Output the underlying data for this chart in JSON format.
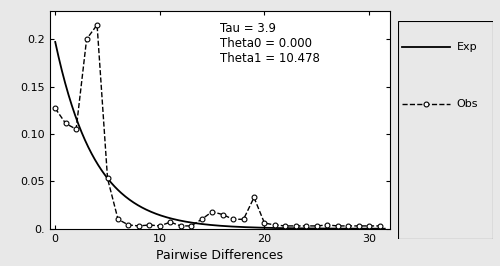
{
  "tau": 3.9,
  "theta0": 0.0,
  "theta1": 10.478,
  "obs_x": [
    0,
    1,
    2,
    3,
    4,
    5,
    6,
    7,
    8,
    9,
    10,
    11,
    12,
    13,
    14,
    15,
    16,
    17,
    18,
    19,
    20,
    21,
    22,
    23,
    24,
    25,
    26,
    27,
    28,
    29,
    30,
    31
  ],
  "obs_y": [
    0.127,
    0.111,
    0.105,
    0.2,
    0.215,
    0.053,
    0.01,
    0.004,
    0.003,
    0.004,
    0.003,
    0.007,
    0.003,
    0.003,
    0.01,
    0.018,
    0.015,
    0.01,
    0.01,
    0.033,
    0.006,
    0.004,
    0.003,
    0.003,
    0.003,
    0.003,
    0.004,
    0.003,
    0.003,
    0.003,
    0.003,
    0.003
  ],
  "exp_A": 0.197,
  "exp_b": 0.262,
  "annotation_lines": [
    "Tau = 3.9",
    "Theta0 = 0.000",
    "Theta1 = 10.478"
  ],
  "xlabel": "Pairwise Differences",
  "xlim": [
    -0.5,
    32
  ],
  "ylim": [
    0,
    0.23
  ],
  "yticks": [
    0.0,
    0.05,
    0.1,
    0.15,
    0.2
  ],
  "ytick_labels": [
    "0.",
    "0.05",
    "0.10",
    "0.15",
    "0.2"
  ],
  "xticks": [
    0,
    10,
    20,
    30
  ],
  "legend_exp_label": "Exp",
  "legend_obs_label": "Obs",
  "line_color": "#000000",
  "figsize": [
    5.0,
    2.66
  ],
  "dpi": 100
}
